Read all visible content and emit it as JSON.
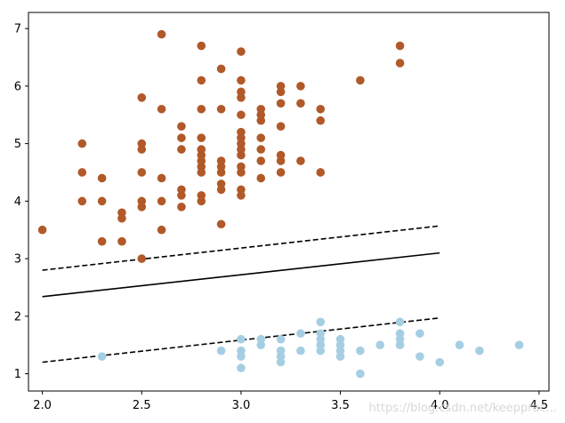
{
  "chart_data": {
    "type": "scatter",
    "title": "",
    "xlabel": "",
    "ylabel": "",
    "xlim": [
      1.93,
      4.55
    ],
    "ylim": [
      0.7,
      7.28
    ],
    "grid": false,
    "x_ticks": [
      "2.0",
      "2.5",
      "3.0",
      "3.5",
      "4.0",
      "4.5"
    ],
    "x_tick_values": [
      2.0,
      2.5,
      3.0,
      3.5,
      4.0,
      4.5
    ],
    "y_ticks": [
      "1",
      "2",
      "3",
      "4",
      "5",
      "6",
      "7"
    ],
    "y_tick_values": [
      1,
      2,
      3,
      4,
      5,
      6,
      7
    ],
    "series": [
      {
        "color": "#b15928",
        "points": [
          [
            2.0,
            3.5
          ],
          [
            2.2,
            4.0
          ],
          [
            2.2,
            4.5
          ],
          [
            2.2,
            5.0
          ],
          [
            2.3,
            3.3
          ],
          [
            2.3,
            4.0
          ],
          [
            2.3,
            4.4
          ],
          [
            2.4,
            3.3
          ],
          [
            2.4,
            3.7
          ],
          [
            2.4,
            3.8
          ],
          [
            2.5,
            3.0
          ],
          [
            2.5,
            3.9
          ],
          [
            2.5,
            4.0
          ],
          [
            2.5,
            4.5
          ],
          [
            2.5,
            4.9
          ],
          [
            2.5,
            5.0
          ],
          [
            2.5,
            5.8
          ],
          [
            2.6,
            3.5
          ],
          [
            2.6,
            4.0
          ],
          [
            2.6,
            4.4
          ],
          [
            2.6,
            5.6
          ],
          [
            2.6,
            6.9
          ],
          [
            2.7,
            3.9
          ],
          [
            2.7,
            4.1
          ],
          [
            2.7,
            4.2
          ],
          [
            2.7,
            4.9
          ],
          [
            2.7,
            5.1
          ],
          [
            2.7,
            5.3
          ],
          [
            2.8,
            4.0
          ],
          [
            2.8,
            4.1
          ],
          [
            2.8,
            4.5
          ],
          [
            2.8,
            4.6
          ],
          [
            2.8,
            4.7
          ],
          [
            2.8,
            4.8
          ],
          [
            2.8,
            4.9
          ],
          [
            2.8,
            5.1
          ],
          [
            2.8,
            5.6
          ],
          [
            2.8,
            6.1
          ],
          [
            2.8,
            6.7
          ],
          [
            2.9,
            3.6
          ],
          [
            2.9,
            4.2
          ],
          [
            2.9,
            4.3
          ],
          [
            2.9,
            4.5
          ],
          [
            2.9,
            4.6
          ],
          [
            2.9,
            4.7
          ],
          [
            2.9,
            5.6
          ],
          [
            2.9,
            6.3
          ],
          [
            3.0,
            4.1
          ],
          [
            3.0,
            4.2
          ],
          [
            3.0,
            4.5
          ],
          [
            3.0,
            4.6
          ],
          [
            3.0,
            4.8
          ],
          [
            3.0,
            4.9
          ],
          [
            3.0,
            5.0
          ],
          [
            3.0,
            5.1
          ],
          [
            3.0,
            5.2
          ],
          [
            3.0,
            5.5
          ],
          [
            3.0,
            5.8
          ],
          [
            3.0,
            5.9
          ],
          [
            3.0,
            6.1
          ],
          [
            3.0,
            6.6
          ],
          [
            3.1,
            4.4
          ],
          [
            3.1,
            4.7
          ],
          [
            3.1,
            4.9
          ],
          [
            3.1,
            5.1
          ],
          [
            3.1,
            5.4
          ],
          [
            3.1,
            5.5
          ],
          [
            3.1,
            5.6
          ],
          [
            3.2,
            4.5
          ],
          [
            3.2,
            4.7
          ],
          [
            3.2,
            4.8
          ],
          [
            3.2,
            5.3
          ],
          [
            3.2,
            5.7
          ],
          [
            3.2,
            5.9
          ],
          [
            3.2,
            6.0
          ],
          [
            3.3,
            4.7
          ],
          [
            3.3,
            5.7
          ],
          [
            3.3,
            6.0
          ],
          [
            3.4,
            4.5
          ],
          [
            3.4,
            5.4
          ],
          [
            3.4,
            5.6
          ],
          [
            3.6,
            6.1
          ],
          [
            3.8,
            6.4
          ],
          [
            3.8,
            6.7
          ]
        ]
      },
      {
        "color": "#a6cee3",
        "points": [
          [
            2.3,
            1.3
          ],
          [
            2.9,
            1.4
          ],
          [
            3.0,
            1.1
          ],
          [
            3.0,
            1.3
          ],
          [
            3.0,
            1.4
          ],
          [
            3.0,
            1.6
          ],
          [
            3.1,
            1.5
          ],
          [
            3.1,
            1.6
          ],
          [
            3.2,
            1.2
          ],
          [
            3.2,
            1.3
          ],
          [
            3.2,
            1.4
          ],
          [
            3.2,
            1.6
          ],
          [
            3.3,
            1.4
          ],
          [
            3.3,
            1.7
          ],
          [
            3.4,
            1.4
          ],
          [
            3.4,
            1.5
          ],
          [
            3.4,
            1.6
          ],
          [
            3.4,
            1.7
          ],
          [
            3.4,
            1.9
          ],
          [
            3.5,
            1.3
          ],
          [
            3.5,
            1.4
          ],
          [
            3.5,
            1.5
          ],
          [
            3.5,
            1.6
          ],
          [
            3.6,
            1.0
          ],
          [
            3.6,
            1.4
          ],
          [
            3.7,
            1.5
          ],
          [
            3.8,
            1.5
          ],
          [
            3.8,
            1.6
          ],
          [
            3.8,
            1.7
          ],
          [
            3.8,
            1.9
          ],
          [
            3.9,
            1.3
          ],
          [
            3.9,
            1.7
          ],
          [
            4.0,
            1.2
          ],
          [
            4.1,
            1.5
          ],
          [
            4.2,
            1.4
          ],
          [
            4.4,
            1.5
          ]
        ]
      }
    ],
    "lines": [
      {
        "style": "solid",
        "color": "#000000",
        "x": [
          2.0,
          4.0
        ],
        "y": [
          2.34,
          3.1
        ]
      },
      {
        "style": "dashed",
        "color": "#000000",
        "x": [
          2.0,
          4.0
        ],
        "y": [
          2.8,
          3.57
        ]
      },
      {
        "style": "dashed",
        "color": "#000000",
        "x": [
          2.0,
          4.0
        ],
        "y": [
          1.2,
          1.97
        ]
      }
    ]
  },
  "watermark": "https://blog.csdn.net/keepprac..."
}
